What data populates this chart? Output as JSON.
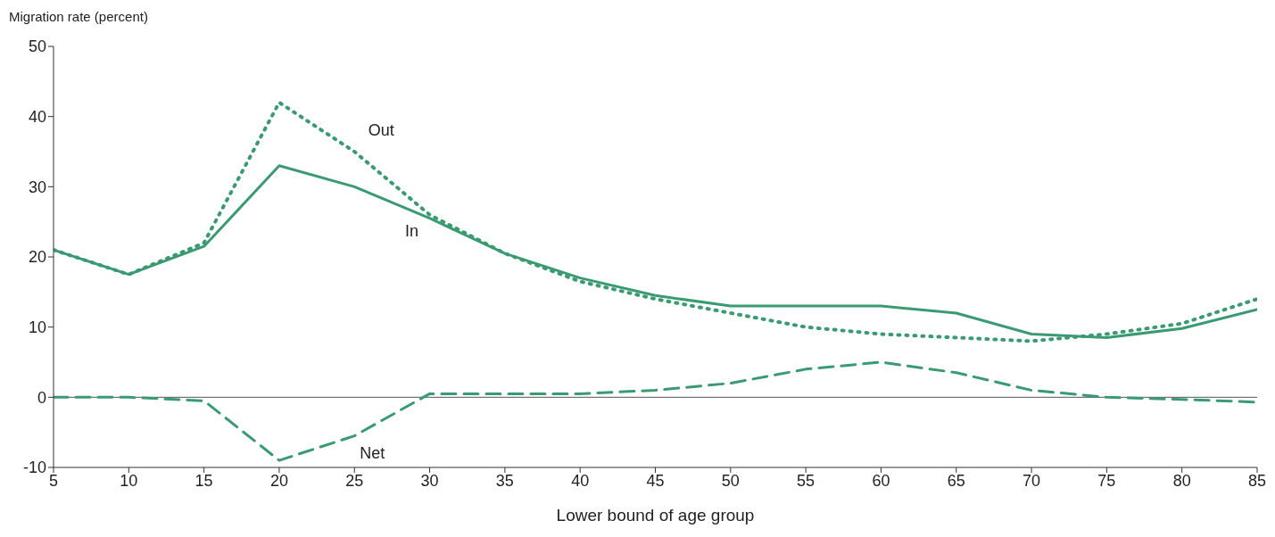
{
  "chart_data": {
    "type": "line",
    "ylabel": "Migration rate (percent)",
    "xlabel": "Lower bound of age group",
    "x": [
      5,
      10,
      15,
      20,
      25,
      30,
      35,
      40,
      45,
      50,
      55,
      60,
      65,
      70,
      75,
      80,
      85
    ],
    "series": [
      {
        "name": "Out",
        "color": "#3a9a72",
        "line_style": "dotted",
        "values": [
          21,
          17.5,
          22,
          42,
          35,
          26,
          20.5,
          16.5,
          14,
          12,
          10,
          9,
          8.5,
          8,
          9,
          10.5,
          14
        ]
      },
      {
        "name": "In",
        "color": "#3a9a72",
        "line_style": "solid",
        "values": [
          21,
          17.5,
          21.5,
          33,
          30,
          25.5,
          20.5,
          17,
          14.5,
          13,
          13,
          13,
          12,
          9,
          8.5,
          9.8,
          12.5
        ]
      },
      {
        "name": "Net",
        "color": "#3a9a72",
        "line_style": "dashed",
        "values": [
          0,
          0,
          -0.5,
          -9,
          -5.5,
          0.5,
          0.5,
          0.5,
          1,
          2,
          4,
          5,
          3.5,
          1,
          0,
          -0.3,
          -0.7
        ]
      }
    ],
    "xlim": [
      5,
      85
    ],
    "xticks": [
      5,
      10,
      15,
      20,
      25,
      30,
      35,
      40,
      45,
      50,
      55,
      60,
      65,
      70,
      75,
      80,
      85
    ],
    "ylim": [
      -10,
      50
    ],
    "yticks": [
      -10,
      0,
      10,
      20,
      30,
      40,
      50
    ],
    "ref_lines": [
      {
        "axis": "y",
        "value": 0,
        "color": "#555555",
        "line_style": "solid"
      }
    ],
    "grid": false,
    "legend": false,
    "marker": "none"
  }
}
